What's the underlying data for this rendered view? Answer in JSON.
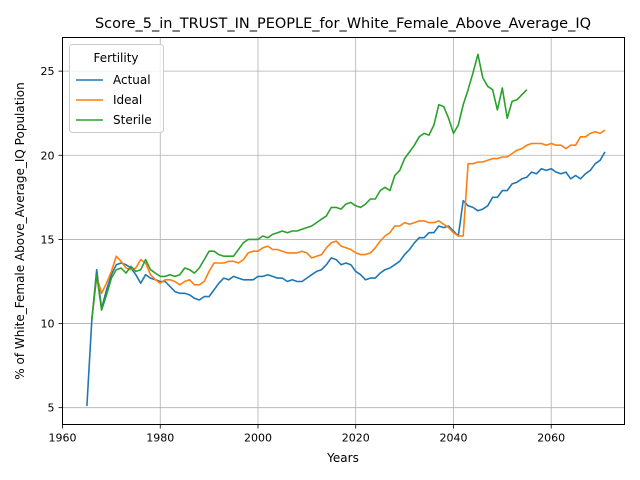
{
  "chart_data": {
    "type": "line",
    "title": "Score_5_in_TRUST_IN_PEOPLE_for_White_Female_Above_Average_IQ",
    "xlabel": "Years",
    "ylabel": "% of White_Female Above_Average_IQ Population",
    "xlim": [
      1960,
      2075
    ],
    "ylim": [
      4,
      27
    ],
    "x_ticks": [
      1960,
      1980,
      2000,
      2020,
      2040,
      2060
    ],
    "y_ticks": [
      5,
      10,
      15,
      20,
      25
    ],
    "grid": true,
    "legend": {
      "title": "Fertility",
      "position": "top-left"
    },
    "series": [
      {
        "name": "Actual",
        "color": "#1f77b4",
        "points": [
          [
            1965,
            5.1
          ],
          [
            1966,
            10.2
          ],
          [
            1967,
            13.2
          ],
          [
            1968,
            10.9
          ],
          [
            1969,
            12.0
          ],
          [
            1970,
            12.9
          ],
          [
            1971,
            13.5
          ],
          [
            1972,
            13.6
          ],
          [
            1973,
            13.5
          ],
          [
            1974,
            13.3
          ],
          [
            1975,
            12.9
          ],
          [
            1976,
            12.4
          ],
          [
            1977,
            12.9
          ],
          [
            1978,
            12.7
          ],
          [
            1979,
            12.6
          ],
          [
            1980,
            12.5
          ],
          [
            1981,
            12.5
          ],
          [
            1982,
            12.2
          ],
          [
            1983,
            11.9
          ],
          [
            1984,
            11.8
          ],
          [
            1985,
            11.8
          ],
          [
            1986,
            11.7
          ],
          [
            1987,
            11.5
          ],
          [
            1988,
            11.4
          ],
          [
            1989,
            11.6
          ],
          [
            1990,
            11.6
          ],
          [
            1991,
            12.0
          ],
          [
            1992,
            12.4
          ],
          [
            1993,
            12.7
          ],
          [
            1994,
            12.6
          ],
          [
            1995,
            12.8
          ],
          [
            1996,
            12.7
          ],
          [
            1997,
            12.6
          ],
          [
            1998,
            12.6
          ],
          [
            1999,
            12.6
          ],
          [
            2000,
            12.8
          ],
          [
            2001,
            12.8
          ],
          [
            2002,
            12.9
          ],
          [
            2003,
            12.8
          ],
          [
            2004,
            12.7
          ],
          [
            2005,
            12.7
          ],
          [
            2006,
            12.5
          ],
          [
            2007,
            12.6
          ],
          [
            2008,
            12.5
          ],
          [
            2009,
            12.5
          ],
          [
            2010,
            12.7
          ],
          [
            2011,
            12.9
          ],
          [
            2012,
            13.1
          ],
          [
            2013,
            13.2
          ],
          [
            2014,
            13.5
          ],
          [
            2015,
            13.9
          ],
          [
            2016,
            13.8
          ],
          [
            2017,
            13.5
          ],
          [
            2018,
            13.6
          ],
          [
            2019,
            13.5
          ],
          [
            2020,
            13.1
          ],
          [
            2021,
            12.9
          ],
          [
            2022,
            12.6
          ],
          [
            2023,
            12.7
          ],
          [
            2024,
            12.7
          ],
          [
            2025,
            13.0
          ],
          [
            2026,
            13.2
          ],
          [
            2027,
            13.3
          ],
          [
            2028,
            13.5
          ],
          [
            2029,
            13.7
          ],
          [
            2030,
            14.1
          ],
          [
            2031,
            14.4
          ],
          [
            2032,
            14.8
          ],
          [
            2033,
            15.1
          ],
          [
            2034,
            15.1
          ],
          [
            2035,
            15.4
          ],
          [
            2036,
            15.4
          ],
          [
            2037,
            15.8
          ],
          [
            2038,
            15.7
          ],
          [
            2039,
            15.8
          ],
          [
            2040,
            15.5
          ],
          [
            2041,
            15.2
          ],
          [
            2042,
            17.3
          ],
          [
            2043,
            17.0
          ],
          [
            2044,
            16.9
          ],
          [
            2045,
            16.7
          ],
          [
            2046,
            16.8
          ],
          [
            2047,
            17.0
          ],
          [
            2048,
            17.5
          ],
          [
            2049,
            17.5
          ],
          [
            2050,
            17.9
          ],
          [
            2051,
            17.9
          ],
          [
            2052,
            18.3
          ],
          [
            2053,
            18.4
          ],
          [
            2054,
            18.6
          ],
          [
            2055,
            18.7
          ],
          [
            2056,
            19.0
          ],
          [
            2057,
            18.9
          ],
          [
            2058,
            19.2
          ],
          [
            2059,
            19.1
          ],
          [
            2060,
            19.2
          ],
          [
            2061,
            19.0
          ],
          [
            2062,
            18.9
          ],
          [
            2063,
            19.0
          ],
          [
            2064,
            18.6
          ],
          [
            2065,
            18.8
          ],
          [
            2066,
            18.6
          ],
          [
            2067,
            18.9
          ],
          [
            2068,
            19.1
          ],
          [
            2069,
            19.5
          ],
          [
            2070,
            19.7
          ],
          [
            2071,
            20.2
          ]
        ]
      },
      {
        "name": "Ideal",
        "color": "#ff7f0e",
        "points": [
          [
            1966,
            10.3
          ],
          [
            1967,
            12.8
          ],
          [
            1968,
            11.8
          ],
          [
            1969,
            12.4
          ],
          [
            1970,
            13.1
          ],
          [
            1971,
            14.0
          ],
          [
            1972,
            13.7
          ],
          [
            1973,
            13.3
          ],
          [
            1974,
            13.2
          ],
          [
            1975,
            13.3
          ],
          [
            1976,
            13.8
          ],
          [
            1977,
            13.6
          ],
          [
            1978,
            12.9
          ],
          [
            1979,
            12.6
          ],
          [
            1980,
            12.4
          ],
          [
            1981,
            12.6
          ],
          [
            1982,
            12.6
          ],
          [
            1983,
            12.5
          ],
          [
            1984,
            12.3
          ],
          [
            1985,
            12.5
          ],
          [
            1986,
            12.6
          ],
          [
            1987,
            12.3
          ],
          [
            1988,
            12.3
          ],
          [
            1989,
            12.5
          ],
          [
            1990,
            13.1
          ],
          [
            1991,
            13.6
          ],
          [
            1992,
            13.6
          ],
          [
            1993,
            13.6
          ],
          [
            1994,
            13.7
          ],
          [
            1995,
            13.7
          ],
          [
            1996,
            13.6
          ],
          [
            1997,
            13.8
          ],
          [
            1998,
            14.2
          ],
          [
            1999,
            14.3
          ],
          [
            2000,
            14.3
          ],
          [
            2001,
            14.5
          ],
          [
            2002,
            14.6
          ],
          [
            2003,
            14.4
          ],
          [
            2004,
            14.4
          ],
          [
            2005,
            14.3
          ],
          [
            2006,
            14.2
          ],
          [
            2007,
            14.2
          ],
          [
            2008,
            14.2
          ],
          [
            2009,
            14.3
          ],
          [
            2010,
            14.2
          ],
          [
            2011,
            13.9
          ],
          [
            2012,
            14.0
          ],
          [
            2013,
            14.1
          ],
          [
            2014,
            14.5
          ],
          [
            2015,
            14.8
          ],
          [
            2016,
            14.9
          ],
          [
            2017,
            14.6
          ],
          [
            2018,
            14.5
          ],
          [
            2019,
            14.4
          ],
          [
            2020,
            14.2
          ],
          [
            2021,
            14.1
          ],
          [
            2022,
            14.1
          ],
          [
            2023,
            14.2
          ],
          [
            2024,
            14.5
          ],
          [
            2025,
            14.9
          ],
          [
            2026,
            15.2
          ],
          [
            2027,
            15.4
          ],
          [
            2028,
            15.8
          ],
          [
            2029,
            15.8
          ],
          [
            2030,
            16.0
          ],
          [
            2031,
            15.9
          ],
          [
            2032,
            16.0
          ],
          [
            2033,
            16.1
          ],
          [
            2034,
            16.1
          ],
          [
            2035,
            16.0
          ],
          [
            2036,
            16.0
          ],
          [
            2037,
            16.1
          ],
          [
            2038,
            15.9
          ],
          [
            2039,
            15.7
          ],
          [
            2040,
            15.4
          ],
          [
            2041,
            15.2
          ],
          [
            2042,
            15.2
          ],
          [
            2043,
            19.5
          ],
          [
            2044,
            19.5
          ],
          [
            2045,
            19.6
          ],
          [
            2046,
            19.6
          ],
          [
            2047,
            19.7
          ],
          [
            2048,
            19.8
          ],
          [
            2049,
            19.8
          ],
          [
            2050,
            19.9
          ],
          [
            2051,
            19.9
          ],
          [
            2052,
            20.1
          ],
          [
            2053,
            20.3
          ],
          [
            2054,
            20.4
          ],
          [
            2055,
            20.6
          ],
          [
            2056,
            20.7
          ],
          [
            2057,
            20.7
          ],
          [
            2058,
            20.7
          ],
          [
            2059,
            20.6
          ],
          [
            2060,
            20.7
          ],
          [
            2061,
            20.6
          ],
          [
            2062,
            20.6
          ],
          [
            2063,
            20.4
          ],
          [
            2064,
            20.6
          ],
          [
            2065,
            20.6
          ],
          [
            2066,
            21.1
          ],
          [
            2067,
            21.1
          ],
          [
            2068,
            21.3
          ],
          [
            2069,
            21.4
          ],
          [
            2070,
            21.3
          ],
          [
            2071,
            21.5
          ]
        ]
      },
      {
        "name": "Sterile",
        "color": "#2ca02c",
        "points": [
          [
            1966,
            10.2
          ],
          [
            1967,
            12.9
          ],
          [
            1968,
            10.8
          ],
          [
            1969,
            11.7
          ],
          [
            1970,
            12.7
          ],
          [
            1971,
            13.2
          ],
          [
            1972,
            13.3
          ],
          [
            1973,
            13.0
          ],
          [
            1974,
            13.4
          ],
          [
            1975,
            13.1
          ],
          [
            1976,
            13.2
          ],
          [
            1977,
            13.8
          ],
          [
            1978,
            13.2
          ],
          [
            1979,
            13.0
          ],
          [
            1980,
            12.8
          ],
          [
            1981,
            12.8
          ],
          [
            1982,
            12.9
          ],
          [
            1983,
            12.8
          ],
          [
            1984,
            12.9
          ],
          [
            1985,
            13.3
          ],
          [
            1986,
            13.2
          ],
          [
            1987,
            13.0
          ],
          [
            1988,
            13.3
          ],
          [
            1989,
            13.8
          ],
          [
            1990,
            14.3
          ],
          [
            1991,
            14.3
          ],
          [
            1992,
            14.1
          ],
          [
            1993,
            14.0
          ],
          [
            1994,
            14.0
          ],
          [
            1995,
            14.0
          ],
          [
            1996,
            14.4
          ],
          [
            1997,
            14.8
          ],
          [
            1998,
            15.0
          ],
          [
            1999,
            15.0
          ],
          [
            2000,
            15.0
          ],
          [
            2001,
            15.2
          ],
          [
            2002,
            15.1
          ],
          [
            2003,
            15.3
          ],
          [
            2004,
            15.4
          ],
          [
            2005,
            15.5
          ],
          [
            2006,
            15.4
          ],
          [
            2007,
            15.5
          ],
          [
            2008,
            15.5
          ],
          [
            2009,
            15.6
          ],
          [
            2010,
            15.7
          ],
          [
            2011,
            15.8
          ],
          [
            2012,
            16.0
          ],
          [
            2013,
            16.2
          ],
          [
            2014,
            16.4
          ],
          [
            2015,
            16.9
          ],
          [
            2016,
            16.9
          ],
          [
            2017,
            16.8
          ],
          [
            2018,
            17.1
          ],
          [
            2019,
            17.2
          ],
          [
            2020,
            17.0
          ],
          [
            2021,
            16.9
          ],
          [
            2022,
            17.1
          ],
          [
            2023,
            17.4
          ],
          [
            2024,
            17.4
          ],
          [
            2025,
            17.9
          ],
          [
            2026,
            18.1
          ],
          [
            2027,
            17.9
          ],
          [
            2028,
            18.8
          ],
          [
            2029,
            19.1
          ],
          [
            2030,
            19.8
          ],
          [
            2031,
            20.2
          ],
          [
            2032,
            20.6
          ],
          [
            2033,
            21.1
          ],
          [
            2034,
            21.3
          ],
          [
            2035,
            21.2
          ],
          [
            2036,
            21.8
          ],
          [
            2037,
            23.0
          ],
          [
            2038,
            22.9
          ],
          [
            2039,
            22.2
          ],
          [
            2040,
            21.3
          ],
          [
            2041,
            21.8
          ],
          [
            2042,
            23.0
          ],
          [
            2043,
            23.9
          ],
          [
            2044,
            24.9
          ],
          [
            2045,
            26.0
          ],
          [
            2046,
            24.6
          ],
          [
            2047,
            24.1
          ],
          [
            2048,
            23.9
          ],
          [
            2049,
            22.7
          ],
          [
            2050,
            24.0
          ],
          [
            2051,
            22.2
          ],
          [
            2052,
            23.2
          ],
          [
            2053,
            23.3
          ],
          [
            2054,
            23.6
          ],
          [
            2055,
            23.9
          ]
        ]
      }
    ]
  }
}
